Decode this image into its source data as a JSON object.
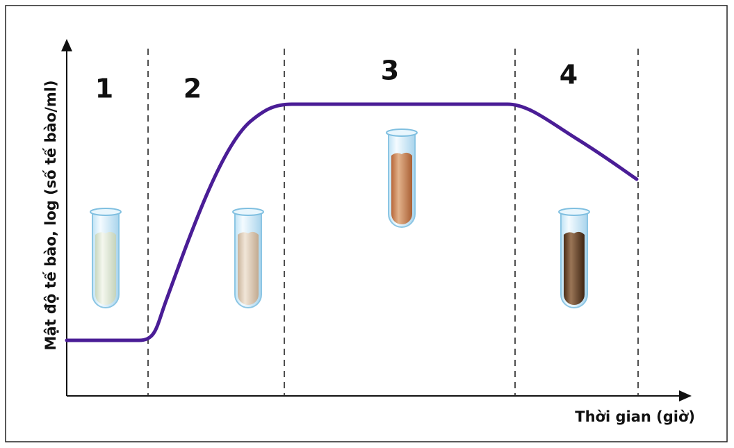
{
  "axes": {
    "y_label": "Mật độ tế bào, log (số tế bào/ml)",
    "x_label": "Thời gian (giờ)"
  },
  "phases": [
    {
      "label": "1"
    },
    {
      "label": "2"
    },
    {
      "label": "3"
    },
    {
      "label": "4"
    }
  ]
}
